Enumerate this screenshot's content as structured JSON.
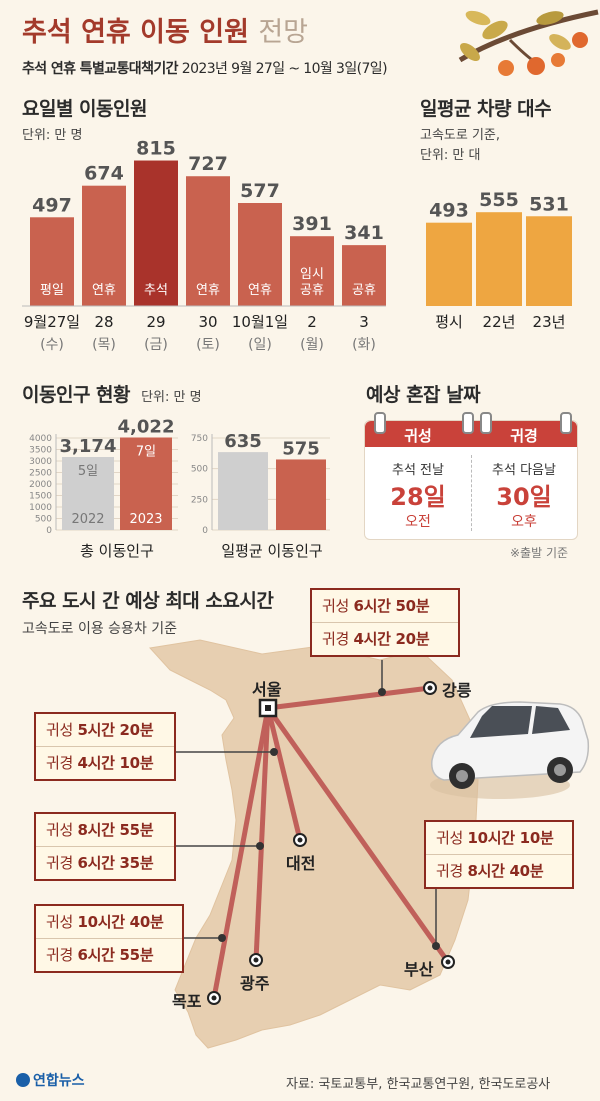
{
  "header": {
    "title_main": "추석 연휴 이동 인원",
    "title_light": "전망",
    "sub_bold": "추석 연휴 특별교통대책기간",
    "sub_period": "2023년 9월 27일 ~ 10월 3일(7일)"
  },
  "daily": {
    "title": "요일별 이동인원",
    "unit": "단위: 만 명",
    "bars": [
      {
        "value": 497,
        "value_label": "497",
        "inner": "평일",
        "date": "9월27일",
        "day": "(수)",
        "highlight": false
      },
      {
        "value": 674,
        "value_label": "674",
        "inner": "연휴",
        "date": "28",
        "day": "(목)",
        "highlight": false
      },
      {
        "value": 815,
        "value_label": "815",
        "inner": "추석",
        "date": "29",
        "day": "(금)",
        "highlight": true
      },
      {
        "value": 727,
        "value_label": "727",
        "inner": "연휴",
        "date": "30",
        "day": "(토)",
        "highlight": false
      },
      {
        "value": 577,
        "value_label": "577",
        "inner": "연휴",
        "date": "10월1일",
        "day": "(일)",
        "highlight": false
      },
      {
        "value": 391,
        "value_label": "391",
        "inner": "임시\n공휴",
        "date": "2",
        "day": "(월)",
        "highlight": false
      },
      {
        "value": 341,
        "value_label": "341",
        "inner": "공휴",
        "date": "3",
        "day": "(화)",
        "highlight": false
      }
    ]
  },
  "vehicles": {
    "title": "일평균 차량 대수",
    "unit_line1": "고속도로 기준,",
    "unit_line2": "단위: 만 대",
    "bars": [
      {
        "value": 493,
        "value_label": "493",
        "label": "평시"
      },
      {
        "value": 555,
        "value_label": "555",
        "label": "22년"
      },
      {
        "value": 531,
        "value_label": "531",
        "label": "23년"
      }
    ]
  },
  "population": {
    "title": "이동인구 현황",
    "unit": "단위: 만 명",
    "total": {
      "axis_ticks": [
        "4000",
        "3500",
        "3000",
        "2500",
        "2000",
        "1500",
        "1000",
        "500",
        "0"
      ],
      "bars": [
        {
          "value": 3174,
          "value_label": "3,174",
          "inner_top": "5일",
          "inner_bottom": "2022"
        },
        {
          "value": 4022,
          "value_label": "4,022",
          "inner_top": "7일",
          "inner_bottom": "2023"
        }
      ],
      "caption": "총 이동인구"
    },
    "daily_avg": {
      "axis_ticks": [
        "750",
        "500",
        "250",
        "0"
      ],
      "bars": [
        {
          "value": 635,
          "value_label": "635"
        },
        {
          "value": 575,
          "value_label": "575"
        }
      ],
      "caption": "일평균 이동인구"
    }
  },
  "congestion": {
    "title": "예상 혼잡 날짜",
    "left": {
      "header": "귀성",
      "desc": "추석 전날",
      "date": "28일",
      "time": "오전"
    },
    "right": {
      "header": "귀경",
      "desc": "추석 다음날",
      "date": "30일",
      "time": "오후"
    },
    "note": "※출발 기준"
  },
  "travel": {
    "title": "주요 도시 간 예상 최대 소요시간",
    "subtitle": "고속도로 이용 승용차 기준",
    "origin": "서울",
    "routes": [
      {
        "city": "강릉",
        "depart_label": "귀성",
        "depart": "6시간 50분",
        "return_label": "귀경",
        "return": "4시간 20분"
      },
      {
        "city": "대전",
        "depart_label": "귀성",
        "depart": "5시간 20분",
        "return_label": "귀경",
        "return": "4시간 10분"
      },
      {
        "city": "광주",
        "depart_label": "귀성",
        "depart": "8시간 55분",
        "return_label": "귀경",
        "return": "6시간 35분"
      },
      {
        "city": "목포",
        "depart_label": "귀성",
        "depart": "10시간 40분",
        "return_label": "귀경",
        "return": "6시간 55분"
      },
      {
        "city": "부산",
        "depart_label": "귀성",
        "depart": "10시간 10분",
        "return_label": "귀경",
        "return": "8시간 40분"
      }
    ]
  },
  "footer": {
    "logo": "연합뉴스",
    "source": "자료: 국토교통부, 한국교통연구원, 한국도로공사"
  },
  "colors": {
    "bar": "#c9624f",
    "bar_highlight": "#a9332b",
    "bar_orange": "#eea641",
    "bar_gray": "#cfcfcf",
    "title_red": "#a33a2b",
    "box_border": "#8b2a1f",
    "map": "#e7cfb1",
    "route": "#c0605a"
  },
  "chart_data": [
    {
      "type": "bar",
      "title": "요일별 이동인원",
      "unit": "만 명",
      "categories": [
        "9월27일 (수)",
        "28 (목)",
        "29 (금)",
        "30 (토)",
        "10월1일 (일)",
        "2 (월)",
        "3 (화)"
      ],
      "values": [
        497,
        674,
        815,
        727,
        577,
        391,
        341
      ]
    },
    {
      "type": "bar",
      "title": "일평균 차량 대수",
      "unit": "만 대",
      "categories": [
        "평시",
        "22년",
        "23년"
      ],
      "values": [
        493,
        555,
        531
      ]
    },
    {
      "type": "bar",
      "title": "총 이동인구",
      "categories": [
        "2022",
        "2023"
      ],
      "values": [
        3174,
        4022
      ],
      "ylim": [
        0,
        4000
      ]
    },
    {
      "type": "bar",
      "title": "일평균 이동인구",
      "categories": [
        "2022",
        "2023"
      ],
      "values": [
        635,
        575
      ],
      "ylim": [
        0,
        750
      ]
    }
  ]
}
